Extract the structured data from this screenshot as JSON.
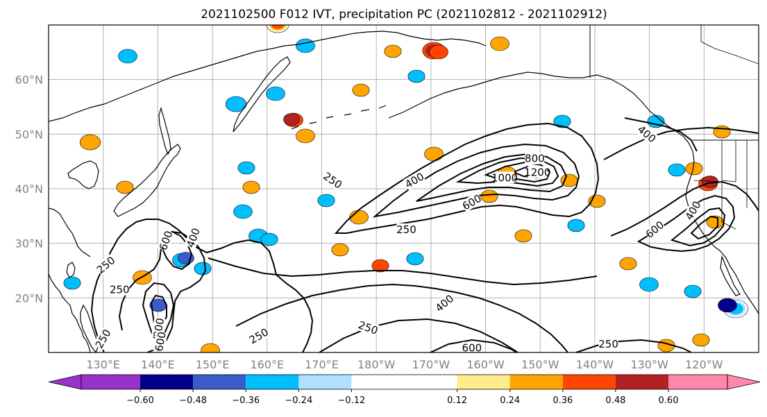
{
  "chart_data": {
    "type": "map-contour",
    "title": "2021102500 F012 IVT, precipitation PC (2021102812 - 2021102912)",
    "map": {
      "lon_range": [
        120,
        250
      ],
      "lat_range": [
        10,
        70
      ],
      "lat_ticks": [
        {
          "lat": 20,
          "label": "20°N"
        },
        {
          "lat": 30,
          "label": "30°N"
        },
        {
          "lat": 40,
          "label": "40°N"
        },
        {
          "lat": 50,
          "label": "50°N"
        },
        {
          "lat": 60,
          "label": "60°N"
        }
      ],
      "lon_ticks": [
        {
          "lon": 130,
          "label": "130°E"
        },
        {
          "lon": 140,
          "label": "140°E"
        },
        {
          "lon": 150,
          "label": "150°E"
        },
        {
          "lon": 160,
          "label": "160°E"
        },
        {
          "lon": 170,
          "label": "170°E"
        },
        {
          "lon": 180,
          "label": "180°W"
        },
        {
          "lon": 190,
          "label": "170°W"
        },
        {
          "lon": 200,
          "label": "160°W"
        },
        {
          "lon": 210,
          "label": "150°W"
        },
        {
          "lon": 220,
          "label": "140°W"
        },
        {
          "lon": 230,
          "label": "130°W"
        },
        {
          "lon": 240,
          "label": "120°W"
        }
      ],
      "grid": true
    },
    "ivt_contour_labels": [
      {
        "text": "250",
        "lon": 130.5,
        "lat": 26.0,
        "rot": -40
      },
      {
        "text": "250",
        "lon": 133.0,
        "lat": 21.5,
        "rot": 0
      },
      {
        "text": "250",
        "lon": 130.0,
        "lat": 12.5,
        "rot": -60
      },
      {
        "text": "600",
        "lon": 141.5,
        "lat": 30.5,
        "rot": -70
      },
      {
        "text": "400",
        "lon": 146.5,
        "lat": 31.0,
        "rot": -70
      },
      {
        "text": "800",
        "lon": 140.2,
        "lat": 14.5,
        "rot": -80
      },
      {
        "text": "600",
        "lon": 140.5,
        "lat": 12.0,
        "rot": -80
      },
      {
        "text": "250",
        "lon": 158.5,
        "lat": 13.0,
        "rot": -30
      },
      {
        "text": "250",
        "lon": 172.0,
        "lat": 41.5,
        "rot": 35
      },
      {
        "text": "400",
        "lon": 187.0,
        "lat": 41.5,
        "rot": -30
      },
      {
        "text": "800",
        "lon": 209.0,
        "lat": 45.5,
        "rot": 0
      },
      {
        "text": "1000",
        "lon": 203.5,
        "lat": 42.0,
        "rot": 0
      },
      {
        "text": "1200",
        "lon": 209.5,
        "lat": 43.0,
        "rot": 0
      },
      {
        "text": "600",
        "lon": 197.5,
        "lat": 37.5,
        "rot": -30
      },
      {
        "text": "250",
        "lon": 185.5,
        "lat": 32.5,
        "rot": 0
      },
      {
        "text": "400",
        "lon": 192.5,
        "lat": 19.0,
        "rot": -40
      },
      {
        "text": "250",
        "lon": 178.5,
        "lat": 14.5,
        "rot": 20
      },
      {
        "text": "600",
        "lon": 197.5,
        "lat": 10.8,
        "rot": 0
      },
      {
        "text": "250",
        "lon": 222.5,
        "lat": 11.5,
        "rot": 0
      },
      {
        "text": "600",
        "lon": 231.0,
        "lat": 32.5,
        "rot": -40
      },
      {
        "text": "400",
        "lon": 238.0,
        "lat": 36.0,
        "rot": -60
      },
      {
        "text": "400",
        "lon": 229.5,
        "lat": 50.0,
        "rot": 40
      }
    ],
    "colorbar": {
      "orientation": "horizontal",
      "extend": "both",
      "levels": [
        -0.72,
        -0.6,
        -0.48,
        -0.36,
        -0.24,
        -0.12,
        0.12,
        0.24,
        0.36,
        0.48,
        0.6,
        0.72
      ],
      "tick_values": [
        -0.6,
        -0.48,
        -0.36,
        -0.24,
        -0.12,
        0.12,
        0.24,
        0.36,
        0.48,
        0.6
      ],
      "tick_labels": [
        "−0.60",
        "−0.48",
        "−0.36",
        "−0.24",
        "−0.12",
        "0.12",
        "0.24",
        "0.36",
        "0.48",
        "0.60"
      ],
      "under_color": "#9932cc",
      "over_color": "#ff88aa",
      "colors": [
        "#9932cc",
        "#00008b",
        "#3a5bcc",
        "#00bfff",
        "#b0e2ff",
        "#ffffff",
        "#ffec8b",
        "#ffa500",
        "#ff4500",
        "#b22222",
        "#ff88aa"
      ]
    }
  }
}
